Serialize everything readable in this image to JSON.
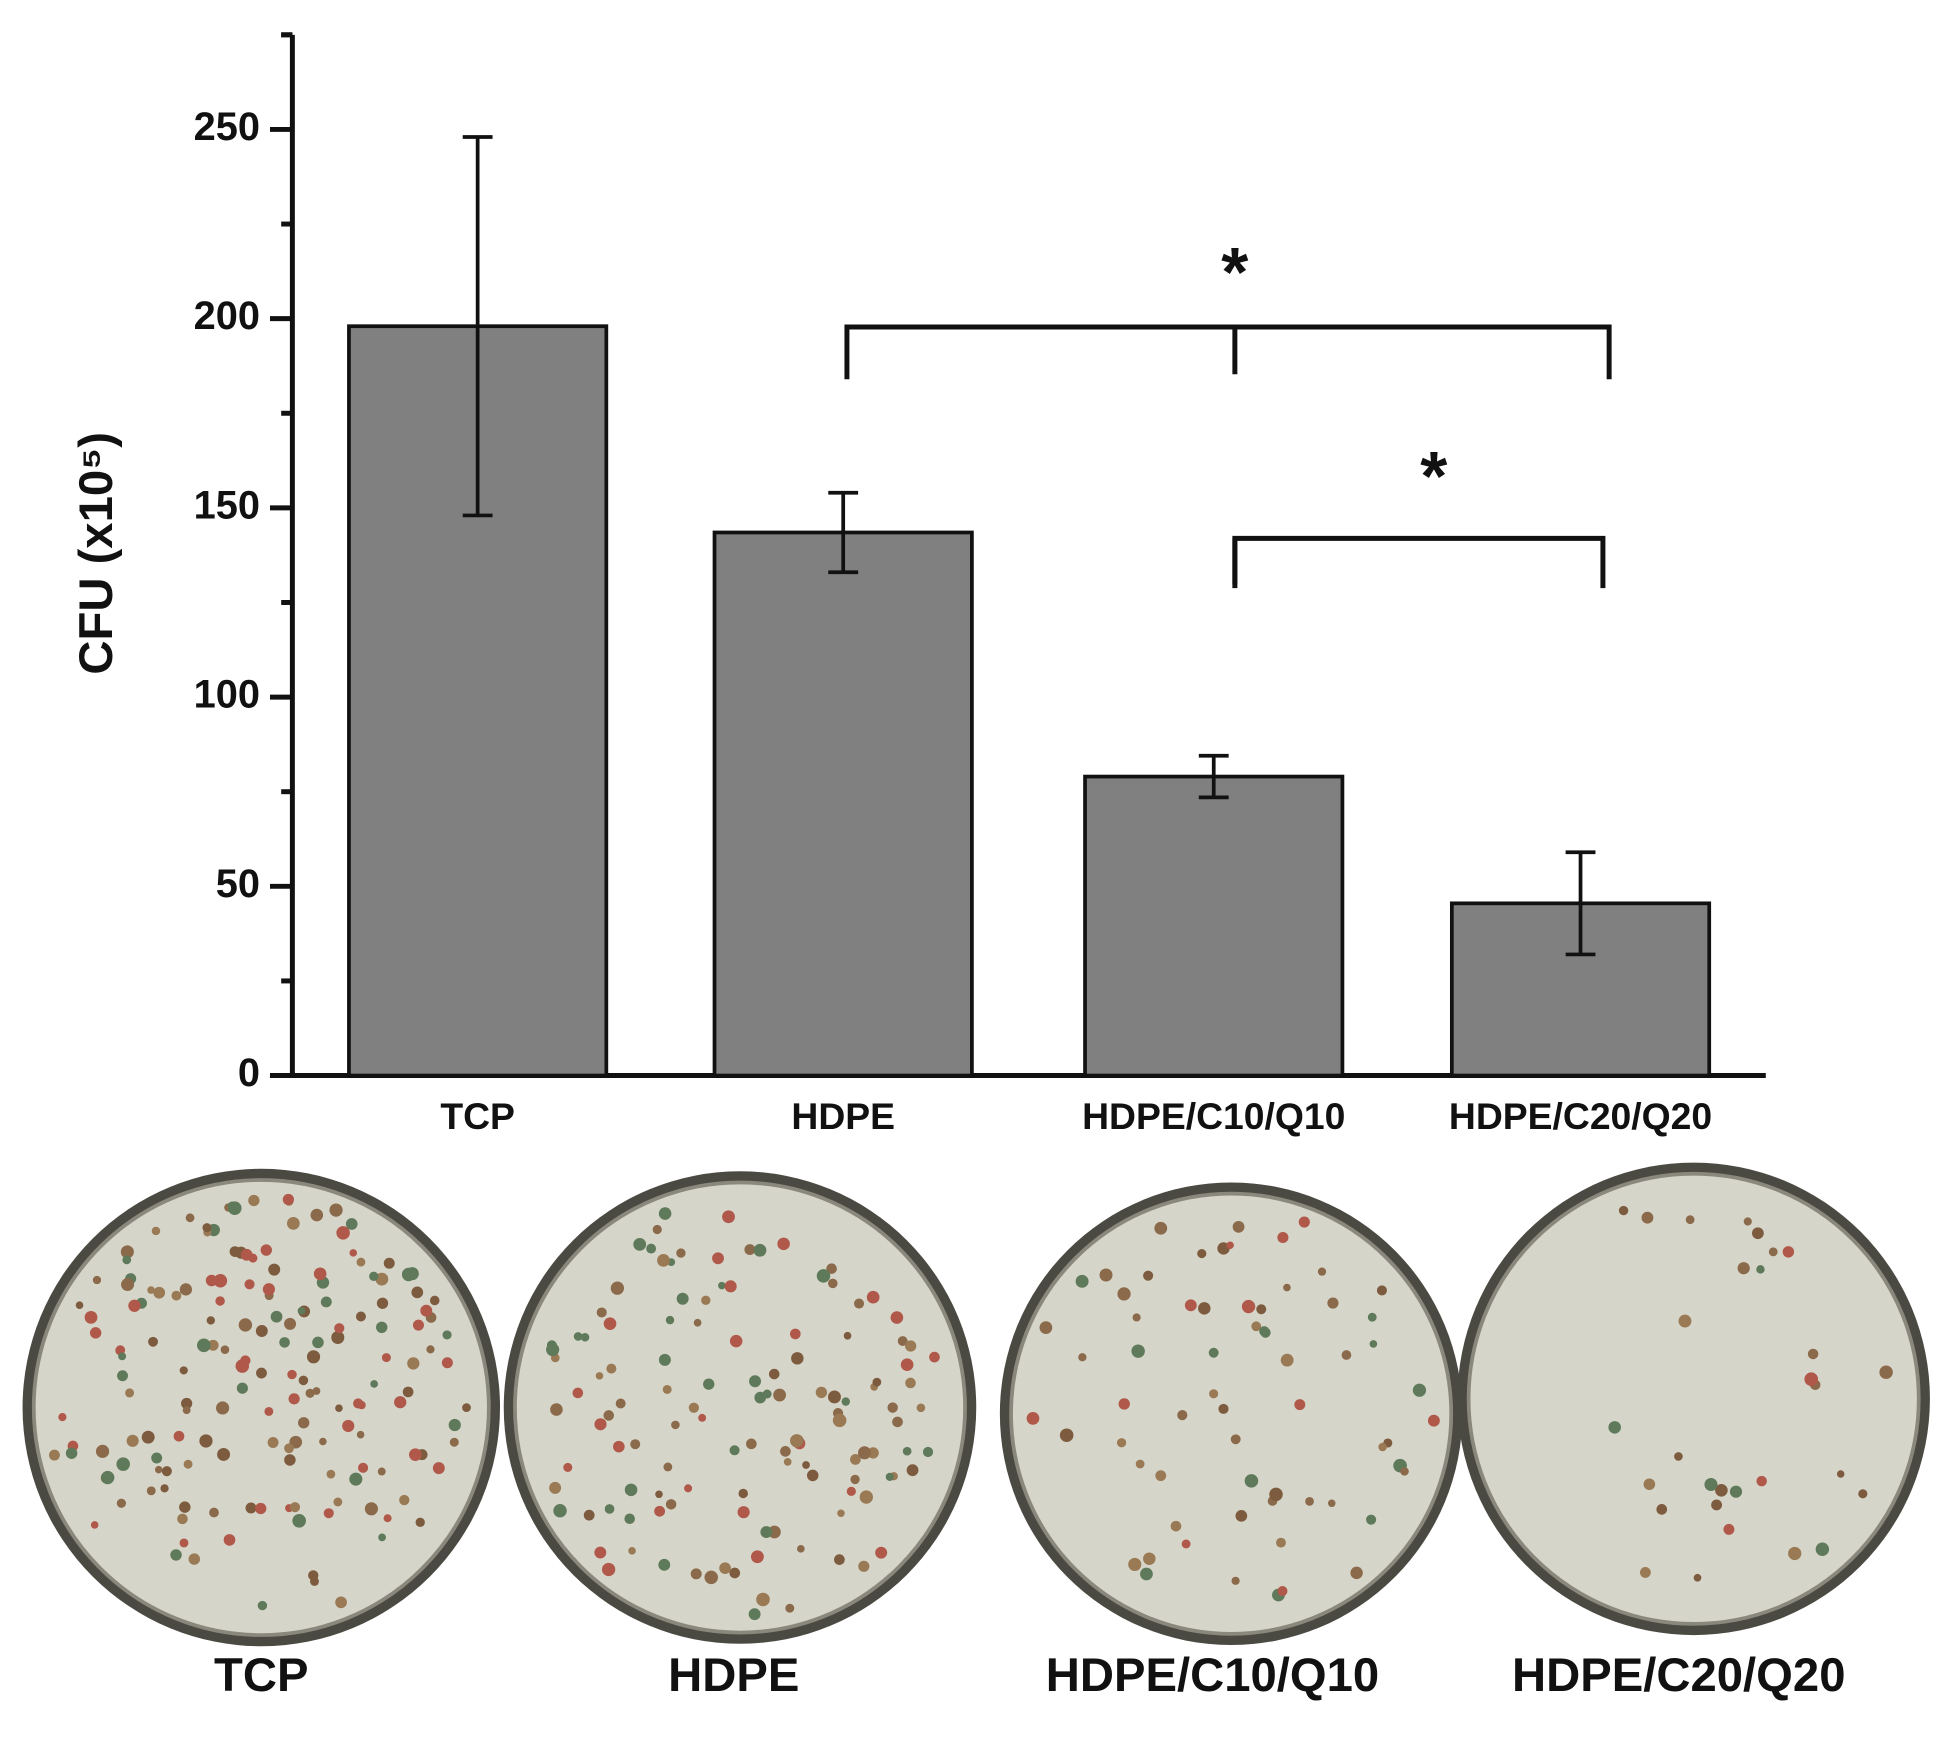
{
  "chart_data": {
    "type": "bar",
    "y_label": "CFU (x10⁵)",
    "categories": [
      "TCP",
      "HDPE",
      "HDPE/C10/Q10",
      "HDPE/C20/Q20"
    ],
    "values": [
      198,
      143.5,
      79,
      45.5
    ],
    "errors": [
      50,
      10.5,
      5.5,
      13.5
    ],
    "color": "#808080",
    "ylim": [
      0,
      275
    ],
    "yticks": [
      0,
      50,
      100,
      150,
      200,
      250
    ],
    "annotations": [
      {
        "text": "*"
      },
      {
        "text": "*"
      }
    ]
  },
  "photo_captions": [
    "TCP",
    "HDPE",
    "HDPE/C10/Q10",
    "HDPE/C20/Q20"
  ]
}
